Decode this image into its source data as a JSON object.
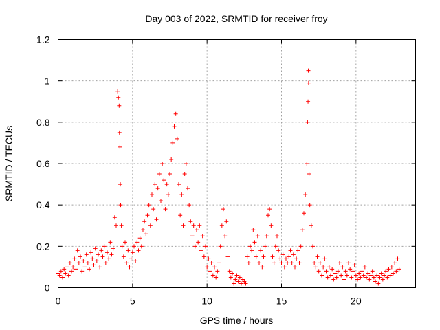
{
  "chart_data": {
    "type": "scatter",
    "title": "Day 003 of 2022, SRMTID for receiver froy",
    "xlabel": "GPS time / hours",
    "ylabel": "SRMTID / TECUs",
    "xlim": [
      0,
      24
    ],
    "ylim": [
      0,
      1.2
    ],
    "x_ticks": [
      {
        "value": 0,
        "label": "0"
      },
      {
        "value": 5,
        "label": "5"
      },
      {
        "value": 10,
        "label": "10"
      },
      {
        "value": 15,
        "label": "15"
      },
      {
        "value": 20,
        "label": "20"
      }
    ],
    "y_ticks": [
      {
        "value": 0,
        "label": "0"
      },
      {
        "value": 0.2,
        "label": "0.2"
      },
      {
        "value": 0.4,
        "label": "0.4"
      },
      {
        "value": 0.6,
        "label": "0.6"
      },
      {
        "value": 0.8,
        "label": "0.8"
      },
      {
        "value": 1.0,
        "label": "1"
      },
      {
        "value": 1.2,
        "label": "1.2"
      }
    ],
    "grid": true,
    "marker": "plus",
    "series": [
      {
        "name": "SRMTID",
        "color": "#ff0000",
        "points": [
          [
            0.0,
            0.07
          ],
          [
            0.1,
            0.06
          ],
          [
            0.2,
            0.08
          ],
          [
            0.3,
            0.05
          ],
          [
            0.4,
            0.09
          ],
          [
            0.5,
            0.07
          ],
          [
            0.6,
            0.1
          ],
          [
            0.7,
            0.06
          ],
          [
            0.8,
            0.12
          ],
          [
            0.9,
            0.08
          ],
          [
            1.0,
            0.1
          ],
          [
            1.1,
            0.14
          ],
          [
            1.2,
            0.09
          ],
          [
            1.3,
            0.18
          ],
          [
            1.4,
            0.12
          ],
          [
            1.5,
            0.15
          ],
          [
            1.6,
            0.08
          ],
          [
            1.7,
            0.13
          ],
          [
            1.8,
            0.1
          ],
          [
            1.9,
            0.16
          ],
          [
            2.0,
            0.12
          ],
          [
            2.1,
            0.09
          ],
          [
            2.2,
            0.17
          ],
          [
            2.3,
            0.14
          ],
          [
            2.4,
            0.11
          ],
          [
            2.5,
            0.19
          ],
          [
            2.6,
            0.13
          ],
          [
            2.7,
            0.16
          ],
          [
            2.8,
            0.1
          ],
          [
            2.9,
            0.18
          ],
          [
            3.0,
            0.15
          ],
          [
            3.1,
            0.2
          ],
          [
            3.2,
            0.12
          ],
          [
            3.3,
            0.17
          ],
          [
            3.4,
            0.14
          ],
          [
            3.5,
            0.22
          ],
          [
            3.6,
            0.16
          ],
          [
            3.7,
            0.19
          ],
          [
            3.8,
            0.34
          ],
          [
            3.9,
            0.3
          ],
          [
            4.0,
            0.95
          ],
          [
            4.05,
            0.92
          ],
          [
            4.1,
            0.88
          ],
          [
            4.12,
            0.75
          ],
          [
            4.15,
            0.68
          ],
          [
            4.18,
            0.5
          ],
          [
            4.2,
            0.4
          ],
          [
            4.25,
            0.3
          ],
          [
            4.3,
            0.2
          ],
          [
            4.4,
            0.15
          ],
          [
            4.5,
            0.22
          ],
          [
            4.6,
            0.12
          ],
          [
            4.7,
            0.18
          ],
          [
            4.8,
            0.1
          ],
          [
            4.9,
            0.14
          ],
          [
            5.0,
            0.17
          ],
          [
            5.1,
            0.2
          ],
          [
            5.2,
            0.13
          ],
          [
            5.3,
            0.22
          ],
          [
            5.4,
            0.18
          ],
          [
            5.5,
            0.24
          ],
          [
            5.6,
            0.2
          ],
          [
            5.7,
            0.28
          ],
          [
            5.8,
            0.32
          ],
          [
            5.9,
            0.26
          ],
          [
            6.0,
            0.35
          ],
          [
            6.1,
            0.4
          ],
          [
            6.2,
            0.3
          ],
          [
            6.3,
            0.45
          ],
          [
            6.4,
            0.38
          ],
          [
            6.5,
            0.5
          ],
          [
            6.6,
            0.33
          ],
          [
            6.7,
            0.48
          ],
          [
            6.8,
            0.55
          ],
          [
            6.9,
            0.42
          ],
          [
            7.0,
            0.6
          ],
          [
            7.1,
            0.52
          ],
          [
            7.2,
            0.38
          ],
          [
            7.3,
            0.5
          ],
          [
            7.4,
            0.45
          ],
          [
            7.5,
            0.55
          ],
          [
            7.6,
            0.62
          ],
          [
            7.7,
            0.7
          ],
          [
            7.8,
            0.78
          ],
          [
            7.9,
            0.84
          ],
          [
            8.0,
            0.72
          ],
          [
            8.1,
            0.5
          ],
          [
            8.2,
            0.35
          ],
          [
            8.3,
            0.45
          ],
          [
            8.4,
            0.3
          ],
          [
            8.5,
            0.55
          ],
          [
            8.6,
            0.6
          ],
          [
            8.7,
            0.48
          ],
          [
            8.8,
            0.4
          ],
          [
            8.9,
            0.32
          ],
          [
            9.0,
            0.25
          ],
          [
            9.1,
            0.3
          ],
          [
            9.2,
            0.2
          ],
          [
            9.3,
            0.28
          ],
          [
            9.4,
            0.22
          ],
          [
            9.5,
            0.3
          ],
          [
            9.6,
            0.18
          ],
          [
            9.7,
            0.25
          ],
          [
            9.8,
            0.15
          ],
          [
            9.9,
            0.2
          ],
          [
            10.0,
            0.1
          ],
          [
            10.1,
            0.14
          ],
          [
            10.2,
            0.08
          ],
          [
            10.3,
            0.12
          ],
          [
            10.4,
            0.06
          ],
          [
            10.5,
            0.1
          ],
          [
            10.6,
            0.05
          ],
          [
            10.7,
            0.08
          ],
          [
            10.8,
            0.12
          ],
          [
            10.9,
            0.2
          ],
          [
            11.0,
            0.3
          ],
          [
            11.1,
            0.38
          ],
          [
            11.2,
            0.25
          ],
          [
            11.3,
            0.32
          ],
          [
            11.4,
            0.15
          ],
          [
            11.5,
            0.08
          ],
          [
            11.6,
            0.05
          ],
          [
            11.7,
            0.07
          ],
          [
            11.8,
            0.02
          ],
          [
            11.9,
            0.04
          ],
          [
            12.0,
            0.06
          ],
          [
            12.1,
            0.03
          ],
          [
            12.2,
            0.05
          ],
          [
            12.3,
            0.02
          ],
          [
            12.4,
            0.04
          ],
          [
            12.5,
            0.03
          ],
          [
            12.6,
            0.02
          ],
          [
            12.7,
            0.15
          ],
          [
            12.8,
            0.12
          ],
          [
            12.9,
            0.2
          ],
          [
            13.0,
            0.18
          ],
          [
            13.1,
            0.28
          ],
          [
            13.2,
            0.22
          ],
          [
            13.3,
            0.15
          ],
          [
            13.4,
            0.25
          ],
          [
            13.5,
            0.12
          ],
          [
            13.6,
            0.18
          ],
          [
            13.7,
            0.1
          ],
          [
            13.8,
            0.15
          ],
          [
            13.9,
            0.2
          ],
          [
            14.0,
            0.25
          ],
          [
            14.1,
            0.35
          ],
          [
            14.2,
            0.38
          ],
          [
            14.3,
            0.3
          ],
          [
            14.4,
            0.15
          ],
          [
            14.5,
            0.12
          ],
          [
            14.6,
            0.2
          ],
          [
            14.7,
            0.25
          ],
          [
            14.8,
            0.18
          ],
          [
            14.9,
            0.14
          ],
          [
            15.0,
            0.12
          ],
          [
            15.1,
            0.16
          ],
          [
            15.2,
            0.1
          ],
          [
            15.3,
            0.14
          ],
          [
            15.4,
            0.12
          ],
          [
            15.5,
            0.15
          ],
          [
            15.6,
            0.18
          ],
          [
            15.7,
            0.12
          ],
          [
            15.8,
            0.16
          ],
          [
            15.9,
            0.1
          ],
          [
            16.0,
            0.14
          ],
          [
            16.1,
            0.18
          ],
          [
            16.2,
            0.12
          ],
          [
            16.3,
            0.2
          ],
          [
            16.4,
            0.28
          ],
          [
            16.5,
            0.36
          ],
          [
            16.6,
            0.45
          ],
          [
            16.7,
            0.6
          ],
          [
            16.75,
            0.8
          ],
          [
            16.78,
            0.9
          ],
          [
            16.8,
            1.05
          ],
          [
            16.82,
            0.99
          ],
          [
            16.85,
            0.55
          ],
          [
            16.9,
            0.4
          ],
          [
            17.0,
            0.3
          ],
          [
            17.1,
            0.2
          ],
          [
            17.2,
            0.12
          ],
          [
            17.3,
            0.1
          ],
          [
            17.4,
            0.15
          ],
          [
            17.5,
            0.08
          ],
          [
            17.6,
            0.12
          ],
          [
            17.7,
            0.06
          ],
          [
            17.8,
            0.1
          ],
          [
            17.9,
            0.14
          ],
          [
            18.0,
            0.08
          ],
          [
            18.1,
            0.05
          ],
          [
            18.2,
            0.1
          ],
          [
            18.3,
            0.06
          ],
          [
            18.4,
            0.09
          ],
          [
            18.5,
            0.04
          ],
          [
            18.6,
            0.07
          ],
          [
            18.7,
            0.05
          ],
          [
            18.8,
            0.08
          ],
          [
            18.9,
            0.12
          ],
          [
            19.0,
            0.06
          ],
          [
            19.1,
            0.1
          ],
          [
            19.2,
            0.04
          ],
          [
            19.3,
            0.08
          ],
          [
            19.4,
            0.06
          ],
          [
            19.5,
            0.12
          ],
          [
            19.6,
            0.09
          ],
          [
            19.7,
            0.05
          ],
          [
            19.8,
            0.08
          ],
          [
            19.9,
            0.11
          ],
          [
            20.0,
            0.06
          ],
          [
            20.1,
            0.04
          ],
          [
            20.2,
            0.07
          ],
          [
            20.3,
            0.05
          ],
          [
            20.4,
            0.08
          ],
          [
            20.5,
            0.06
          ],
          [
            20.6,
            0.1
          ],
          [
            20.7,
            0.05
          ],
          [
            20.8,
            0.07
          ],
          [
            20.9,
            0.04
          ],
          [
            21.0,
            0.06
          ],
          [
            21.1,
            0.08
          ],
          [
            21.2,
            0.05
          ],
          [
            21.3,
            0.03
          ],
          [
            21.4,
            0.06
          ],
          [
            21.5,
            0.02
          ],
          [
            21.6,
            0.05
          ],
          [
            21.7,
            0.07
          ],
          [
            21.8,
            0.04
          ],
          [
            21.9,
            0.06
          ],
          [
            22.0,
            0.08
          ],
          [
            22.1,
            0.05
          ],
          [
            22.2,
            0.09
          ],
          [
            22.3,
            0.06
          ],
          [
            22.4,
            0.1
          ],
          [
            22.5,
            0.07
          ],
          [
            22.6,
            0.12
          ],
          [
            22.7,
            0.08
          ],
          [
            22.8,
            0.14
          ],
          [
            22.9,
            0.09
          ]
        ]
      }
    ]
  }
}
